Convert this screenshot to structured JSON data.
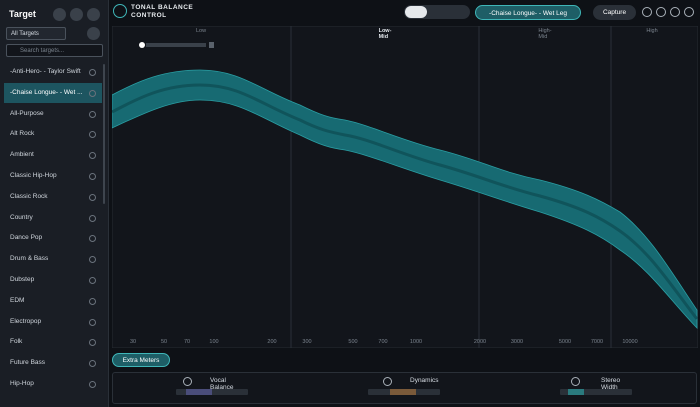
{
  "app": {
    "title_line1": "TONAL BALANCE",
    "title_line2": "CONTROL",
    "target_button": "-Chaise Longue- - Wet Leg",
    "capture": "Capture"
  },
  "sidebar": {
    "title": "Target",
    "filter": "All Targets",
    "search_placeholder": "Search targets...",
    "targets": [
      "-Anti-Hero- - Taylor Swift",
      "-Chaise Longue- - Wet ...",
      "All-Purpose",
      "Alt Rock",
      "Ambient",
      "Classic Hip-Hop",
      "Classic Rock",
      "Country",
      "Dance Pop",
      "Drum & Bass",
      "Dubstep",
      "EDM",
      "Electropop",
      "Folk",
      "Future Bass",
      "Hip-Hop"
    ]
  },
  "plot": {
    "regions": [
      "Low",
      "Low-Mid",
      "High-Mid",
      "High"
    ],
    "freq_labels": [
      "30",
      "50",
      "70",
      "100",
      "200",
      "300",
      "500",
      "700",
      "1000",
      "2000",
      "3000",
      "5000",
      "7000",
      "10000"
    ]
  },
  "extra_meters": "Extra Meters",
  "meters": [
    "Vocal Balance",
    "Dynamics",
    "Stereo Width"
  ]
}
